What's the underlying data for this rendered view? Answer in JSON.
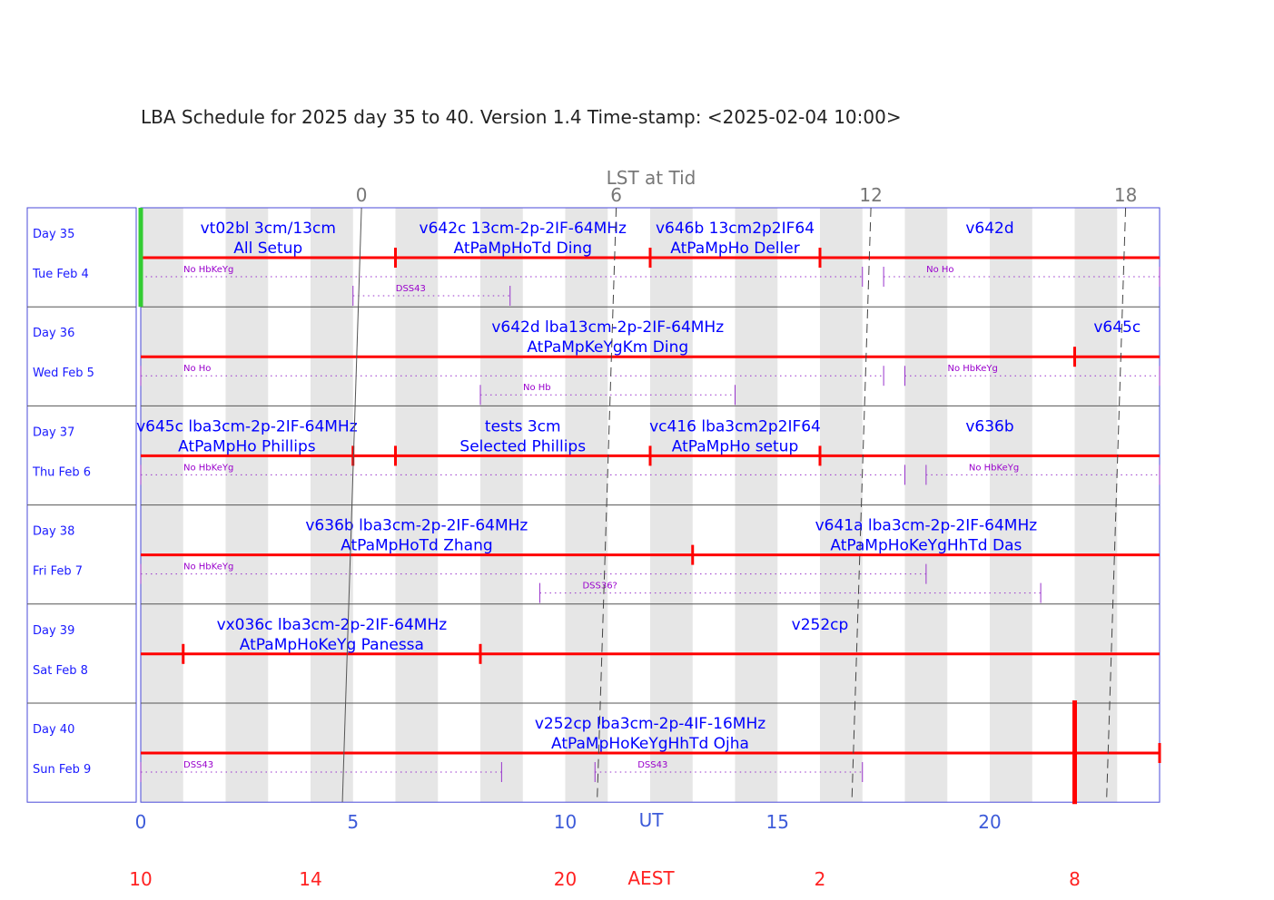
{
  "chart_data": {
    "type": "schedule-timeline",
    "title": "LBA Schedule for 2025 day 35 to 40. Version 1.4 Time-stamp: <2025-02-04 10:00>",
    "xaxis": {
      "label": "UT",
      "range": [
        0,
        24
      ],
      "ticks": [
        0,
        5,
        10,
        15,
        20
      ]
    },
    "aest_axis": {
      "label": "AEST",
      "ticks": [
        {
          "ut": 0,
          "label": "10"
        },
        {
          "ut": 4,
          "label": "14"
        },
        {
          "ut": 10,
          "label": "20"
        },
        {
          "ut": 16,
          "label": "2"
        },
        {
          "ut": 22,
          "label": "8"
        }
      ]
    },
    "lst_axis": {
      "label": "LST at Tid",
      "ticks": [
        {
          "ut": 5.2,
          "label": "0"
        },
        {
          "ut": 11.2,
          "label": "6"
        },
        {
          "ut": 17.2,
          "label": "12"
        },
        {
          "ut": 23.2,
          "label": "18"
        }
      ]
    },
    "lst_lines": [
      {
        "label": "0",
        "solid": true,
        "ut_top": 5.2,
        "ut_bottom": 4.75
      },
      {
        "label": "6",
        "solid": false,
        "ut_top": 11.2,
        "ut_bottom": 10.75
      },
      {
        "label": "12",
        "solid": false,
        "ut_top": 17.2,
        "ut_bottom": 16.75
      },
      {
        "label": "18",
        "solid": false,
        "ut_top": 23.2,
        "ut_bottom": 22.75
      }
    ],
    "now_marker_ut": 0,
    "days": [
      {
        "day": "Day 35",
        "date": "Tue Feb 4",
        "boundaries": [
          0,
          6,
          12,
          16
        ],
        "programs": [
          {
            "name": "vt02bl 3cm/13cm",
            "stations": "All Setup",
            "ut": 3.0
          },
          {
            "name": "v642c 13cm-2p-2IF-64MHz",
            "stations": "AtPaMpHoTd Ding",
            "ut": 9.0
          },
          {
            "name": "v646b 13cm2p2IF64",
            "stations": "AtPaMpHo Deller",
            "ut": 14.0
          },
          {
            "name": "v642d",
            "stations": "",
            "ut": 20.0
          }
        ],
        "notes": [
          {
            "text": "No HbKeYg",
            "row": 1,
            "start": 0,
            "end": 17.0
          },
          {
            "text": "No Ho",
            "row": 1,
            "start": 17.5,
            "end": 24
          },
          {
            "text": "DSS43",
            "row": 2,
            "start": 5.0,
            "end": 8.7
          }
        ]
      },
      {
        "day": "Day 36",
        "date": "Wed Feb 5",
        "boundaries": [
          22
        ],
        "programs": [
          {
            "name": "v642d lba13cm-2p-2IF-64MHz",
            "stations": "AtPaMpKeYgKm Ding",
            "ut": 11.0
          },
          {
            "name": "v645c",
            "stations": "",
            "ut": 23.0
          }
        ],
        "notes": [
          {
            "text": "No Ho",
            "row": 1,
            "start": 0,
            "end": 17.5
          },
          {
            "text": "No HbKeYg",
            "row": 1,
            "start": 18.0,
            "end": 24
          },
          {
            "text": "No Hb",
            "row": 2,
            "start": 8.0,
            "end": 14.0
          }
        ]
      },
      {
        "day": "Day 37",
        "date": "Thu Feb 6",
        "boundaries": [
          5,
          6,
          12,
          16
        ],
        "programs": [
          {
            "name": "v645c lba3cm-2p-2IF-64MHz",
            "stations": "AtPaMpHo Phillips",
            "ut": 2.5
          },
          {
            "name": "tests 3cm",
            "stations": "Selected Phillips",
            "ut": 9.0
          },
          {
            "name": "vc416 lba3cm2p2IF64",
            "stations": "AtPaMpHo setup",
            "ut": 14.0
          },
          {
            "name": "v636b",
            "stations": "",
            "ut": 20.0
          }
        ],
        "notes": [
          {
            "text": "No HbKeYg",
            "row": 1,
            "start": 0,
            "end": 18.0
          },
          {
            "text": "No HbKeYg",
            "row": 1,
            "start": 18.5,
            "end": 24
          }
        ]
      },
      {
        "day": "Day 38",
        "date": "Fri Feb 7",
        "boundaries": [
          13
        ],
        "programs": [
          {
            "name": "v636b lba3cm-2p-2IF-64MHz",
            "stations": "AtPaMpHoTd Zhang",
            "ut": 6.5
          },
          {
            "name": "v641a lba3cm-2p-2IF-64MHz",
            "stations": "AtPaMpHoKeYgHhTd Das",
            "ut": 18.5
          }
        ],
        "notes": [
          {
            "text": "No HbKeYg",
            "row": 1,
            "start": 0,
            "end": 18.5
          },
          {
            "text": "DSS36?",
            "row": 2,
            "start": 9.4,
            "end": 21.2
          }
        ]
      },
      {
        "day": "Day 39",
        "date": "Sat Feb 8",
        "boundaries": [
          1,
          8
        ],
        "programs": [
          {
            "name": "vx036c lba3cm-2p-2IF-64MHz",
            "stations": "AtPaMpHoKeYg Panessa",
            "ut": 4.5
          },
          {
            "name": "v252cp",
            "stations": "",
            "ut": 16.0
          }
        ],
        "notes": []
      },
      {
        "day": "Day 40",
        "date": "Sun Feb 9",
        "boundaries": [
          24
        ],
        "programs": [
          {
            "name": "v252cp lba3cm-2p-4IF-16MHz",
            "stations": "AtPaMpHoKeYgHhTd Ojha",
            "ut": 12.0
          }
        ],
        "notes": [
          {
            "text": "DSS43",
            "row": 1,
            "start": 0,
            "end": 8.5
          },
          {
            "text": "DSS43",
            "row": 1,
            "start": 10.7,
            "end": 17.0
          }
        ]
      }
    ],
    "end_marker": {
      "ut": 22
    },
    "colors": {
      "frame": "#4a4ad9",
      "shade": "#e6e6e6",
      "schedule_line": "#ff0000",
      "program_text": "#0000ff",
      "note": "#9933cc",
      "now_marker": "#33cc33",
      "ut_axis": "#3d5bd9",
      "aest_axis": "#ff2222",
      "lst_axis": "#777777"
    }
  }
}
